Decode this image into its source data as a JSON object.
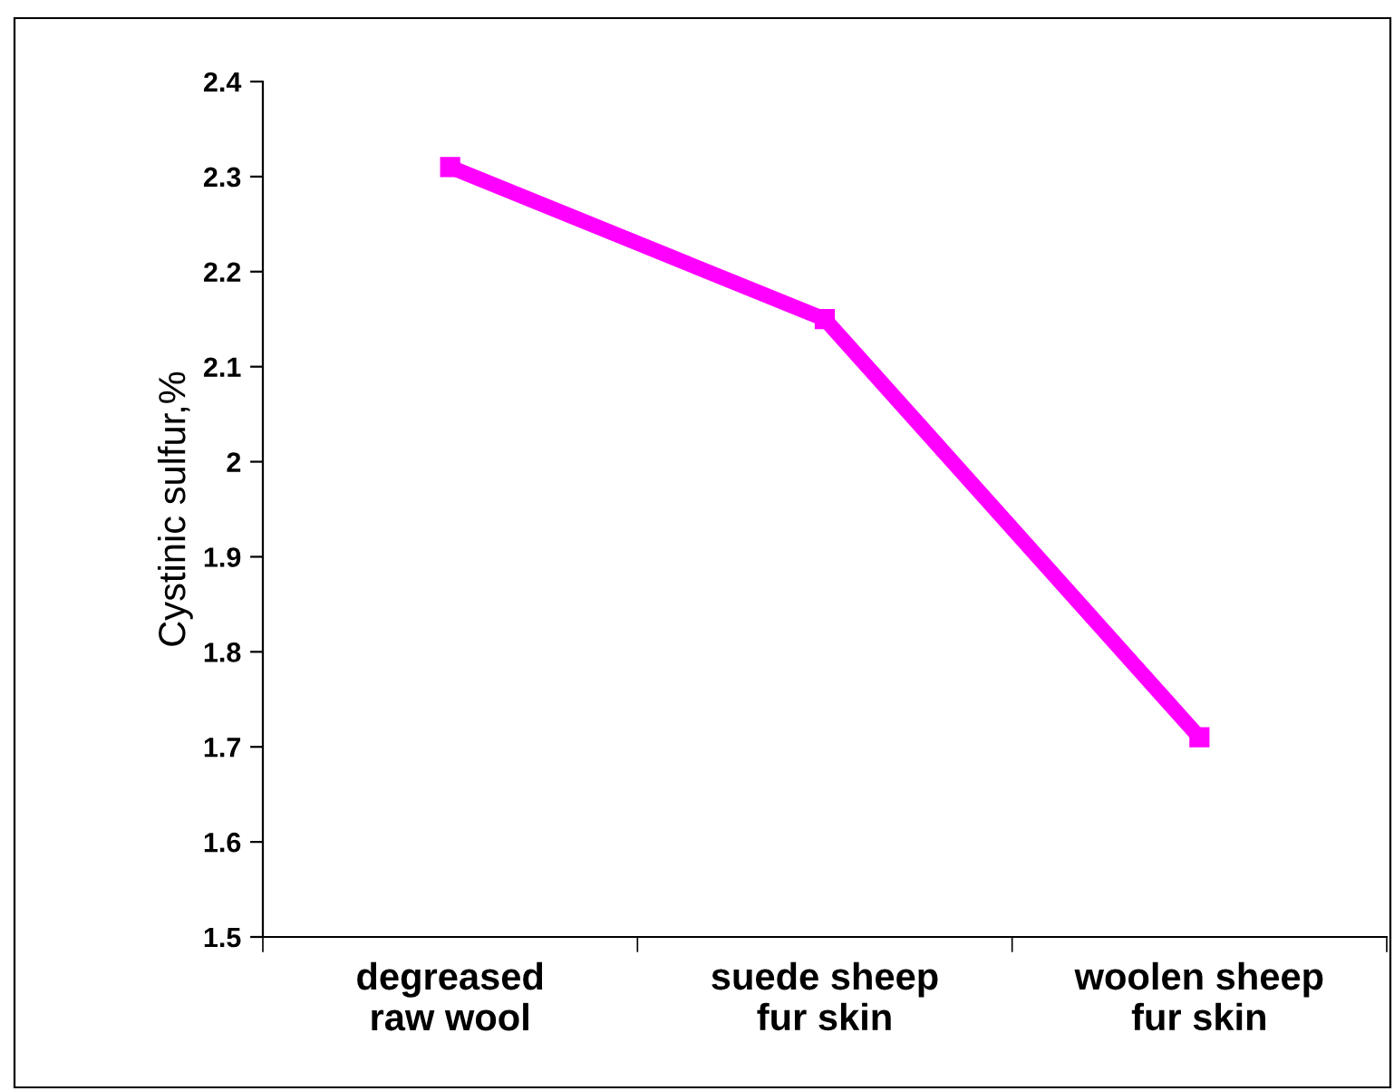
{
  "chart_data": {
    "type": "line",
    "ylabel": "Cystinic sulfur,%",
    "categories": [
      "degreased\nraw wool",
      "suede sheep\nfur skin",
      "woolen sheep\nfur skin"
    ],
    "series": [
      {
        "color": "#ff00ff",
        "values": [
          2.31,
          2.15,
          1.71
        ]
      }
    ],
    "ylim": [
      1.5,
      2.4
    ],
    "yticks": [
      1.5,
      1.6,
      1.7,
      1.8,
      1.9,
      2,
      2.1,
      2.2,
      2.3,
      2.4
    ],
    "grid": false,
    "marker": "square",
    "line_style": "solid"
  }
}
